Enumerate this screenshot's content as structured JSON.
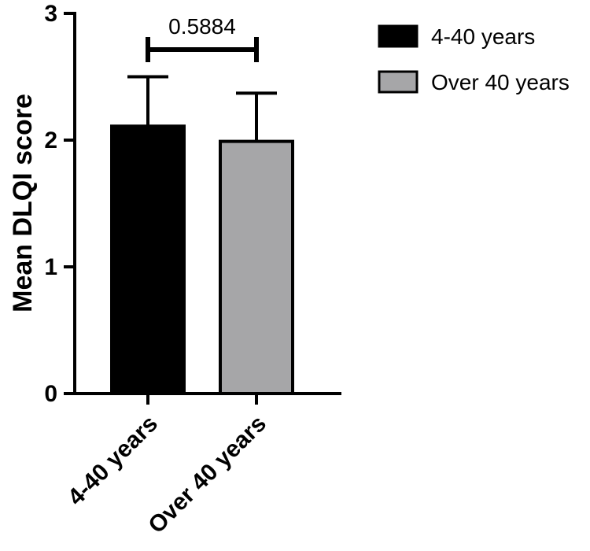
{
  "chart_data": {
    "type": "bar",
    "ylabel": "Mean DLQI score",
    "ylim": [
      0,
      3
    ],
    "yticks": [
      0,
      1,
      2,
      3
    ],
    "categories": [
      "4-40 years",
      "Over 40 years"
    ],
    "series": [
      {
        "name": "4-40 years",
        "color": "#000000",
        "value": 2.11,
        "error": 0.39
      },
      {
        "name": "Over 40 years",
        "color": "#a6a6a8",
        "value": 1.99,
        "error": 0.38
      }
    ],
    "annotation": {
      "text": "0.5884",
      "between": [
        "4-40 years",
        "Over 40 years"
      ]
    },
    "legend_position": "top-right",
    "grid": false
  }
}
